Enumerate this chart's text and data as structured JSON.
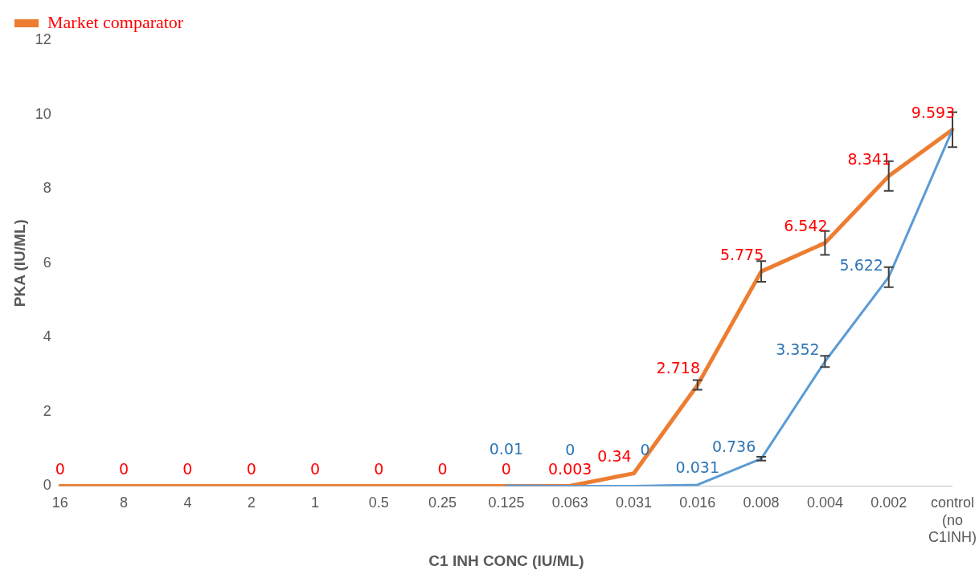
{
  "chart_data": {
    "type": "line",
    "xlabel": "C1 INH CONC (IU/ML)",
    "ylabel": "PKA (IU/ML)",
    "categories": [
      "16",
      "8",
      "4",
      "2",
      "1",
      "0.5",
      "0.25",
      "0.125",
      "0.063",
      "0.031",
      "0.016",
      "0.008",
      "0.004",
      "0.002",
      "control (no C1INH)"
    ],
    "ylim": [
      0,
      12
    ],
    "yticks": [
      0,
      2,
      4,
      6,
      8,
      10,
      12
    ],
    "grid": false,
    "legend": "top left",
    "marker": "none",
    "line_style": "solid",
    "series": [
      {
        "name": "Market comparator",
        "color": "#ed7d31",
        "values": [
          0,
          0,
          0,
          0,
          0,
          0,
          0,
          0,
          0.003,
          0.34,
          2.718,
          5.775,
          6.542,
          8.341,
          9.593
        ],
        "errors": [
          null,
          null,
          null,
          null,
          null,
          null,
          null,
          null,
          null,
          null,
          0.13,
          0.28,
          0.32,
          0.4,
          0.47
        ],
        "value_labels": [
          "0",
          "0",
          "0",
          "0",
          "0",
          "0",
          "0",
          "0",
          "0.003",
          "0.34",
          "2.718",
          "5.775",
          "6.542",
          "8.341",
          "9.593"
        ]
      },
      {
        "color": "#5b9bd5",
        "values": [
          null,
          null,
          null,
          null,
          null,
          null,
          null,
          0.01,
          0,
          0,
          0.031,
          0.736,
          3.352,
          5.622,
          9.593
        ],
        "errors": [
          null,
          null,
          null,
          null,
          null,
          null,
          null,
          null,
          null,
          null,
          null,
          0.05,
          0.15,
          0.27,
          null
        ],
        "value_labels": [
          null,
          null,
          null,
          null,
          null,
          null,
          null,
          "0.01",
          "0",
          "0",
          "0.031",
          "0.736",
          "3.352",
          "5.622",
          null
        ]
      }
    ]
  }
}
